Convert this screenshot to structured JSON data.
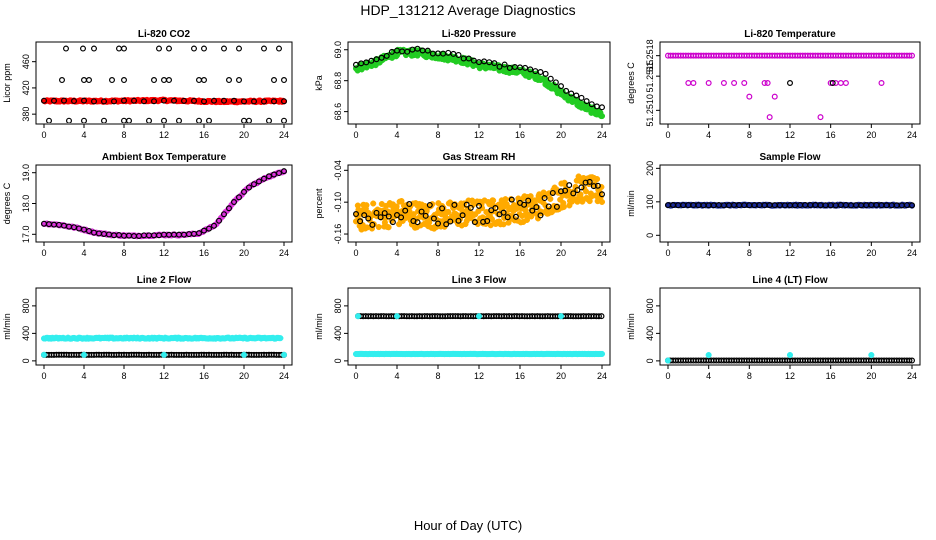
{
  "title": "HDP_131212  Average Diagnostics",
  "xlabel": "Hour of Day (UTC)",
  "chart_data": [
    {
      "type": "scatter",
      "title": "Li-820 CO2",
      "ylabel": "Licor ppm",
      "ylim": [
        365,
        490
      ],
      "yticks": [
        380,
        420,
        460
      ],
      "ytick_labels": [
        "380",
        "420",
        "460"
      ],
      "xlim": [
        0,
        24
      ],
      "xticks": [
        0,
        4,
        8,
        12,
        16,
        20,
        24
      ],
      "series": [
        {
          "color": "#ff0000",
          "filled": true,
          "x_start": 0,
          "x_end": 24,
          "step": 0.1,
          "y": [
            400,
            400,
            401,
            399,
            400
          ],
          "jitter": 1.2
        },
        {
          "color": "#000000",
          "filled": false,
          "x_start": 0,
          "x_end": 24,
          "step": 1,
          "y": [
            400
          ],
          "jitter": 0.8
        },
        {
          "color": "#000000",
          "filled": false,
          "points": [
            [
              2.2,
              480
            ],
            [
              3.9,
              480
            ],
            [
              5,
              480
            ],
            [
              7.5,
              480
            ],
            [
              8,
              480
            ],
            [
              11.5,
              480
            ],
            [
              12.5,
              480
            ],
            [
              15,
              480
            ],
            [
              16,
              480
            ],
            [
              18,
              480
            ],
            [
              19.5,
              480
            ],
            [
              22,
              480
            ],
            [
              23.5,
              480
            ],
            [
              1.8,
              432
            ],
            [
              4,
              432
            ],
            [
              4.5,
              432
            ],
            [
              6.8,
              432
            ],
            [
              8,
              432
            ],
            [
              11,
              432
            ],
            [
              12,
              432
            ],
            [
              12.5,
              432
            ],
            [
              15.5,
              432
            ],
            [
              16,
              432
            ],
            [
              18.5,
              432
            ],
            [
              19.5,
              432
            ],
            [
              23,
              432
            ],
            [
              24,
              432
            ],
            [
              0.5,
              370
            ],
            [
              2.5,
              370
            ],
            [
              4,
              370
            ],
            [
              6,
              370
            ],
            [
              8,
              370
            ],
            [
              8.5,
              370
            ],
            [
              10.5,
              370
            ],
            [
              12,
              370
            ],
            [
              13.5,
              370
            ],
            [
              15.5,
              370
            ],
            [
              16.5,
              370
            ],
            [
              20,
              370
            ],
            [
              20.5,
              370
            ],
            [
              22.5,
              370
            ],
            [
              24,
              370
            ]
          ]
        }
      ]
    },
    {
      "type": "scatter",
      "title": "Li-820 Pressure",
      "ylabel": "kPa",
      "ylim": [
        68.52,
        69.05
      ],
      "yticks": [
        68.6,
        68.8,
        69.0
      ],
      "ytick_labels": [
        "68.6",
        "68.8",
        "69.0"
      ],
      "xlim": [
        0,
        24
      ],
      "xticks": [
        0,
        4,
        8,
        12,
        16,
        20,
        24
      ],
      "series": [
        {
          "color": "#22cc22",
          "filled": true,
          "x_start": 0,
          "x_end": 24,
          "step": 0.08,
          "y": [
            68.88,
            68.92,
            68.98,
            68.98,
            68.96,
            68.94,
            68.9,
            68.88,
            68.86,
            68.82,
            68.72,
            68.64,
            68.58
          ],
          "jitter": 0.02
        },
        {
          "color": "#000000",
          "filled": false,
          "x_start": 0,
          "x_end": 24,
          "step": 0.5,
          "y": [
            68.9,
            68.94,
            68.99,
            69.0,
            68.98,
            68.96,
            68.92,
            68.9,
            68.88,
            68.86,
            68.76,
            68.68,
            68.62
          ],
          "jitter": 0.01
        }
      ]
    },
    {
      "type": "scatter",
      "title": "Li-820 Temperature",
      "ylabel": "degrees C",
      "ylim": [
        51.2508,
        51.252
      ],
      "yticks": [
        51.251,
        51.2515,
        51.2518
      ],
      "ytick_labels": [
        "51.2510",
        "51.2515",
        "51.2518"
      ],
      "xlim": [
        0,
        24
      ],
      "xticks": [
        0,
        4,
        8,
        12,
        16,
        20,
        24
      ],
      "series": [
        {
          "color": "#cc00cc",
          "filled": false,
          "x_start": 0,
          "x_end": 24,
          "step": 0.25,
          "y": [
            51.2518
          ],
          "jitter": 0
        },
        {
          "color": "#cc00cc",
          "filled": false,
          "points": [
            [
              2,
              51.2514
            ],
            [
              2.5,
              51.2514
            ],
            [
              4,
              51.2514
            ],
            [
              5.5,
              51.2514
            ],
            [
              6.5,
              51.2514
            ],
            [
              7.5,
              51.2514
            ],
            [
              9.5,
              51.2514
            ],
            [
              9.8,
              51.2514
            ],
            [
              16,
              51.2514
            ],
            [
              16.5,
              51.2514
            ],
            [
              17,
              51.2514
            ],
            [
              17.5,
              51.2514
            ],
            [
              21,
              51.2514
            ],
            [
              8,
              51.2512
            ],
            [
              10.5,
              51.2512
            ],
            [
              10,
              51.2509
            ],
            [
              15,
              51.2509
            ]
          ]
        },
        {
          "color": "#000000",
          "filled": false,
          "points": [
            [
              12,
              51.2514
            ],
            [
              16.2,
              51.2514
            ]
          ]
        }
      ]
    },
    {
      "type": "scatter",
      "title": "Ambient Box Temperature",
      "ylabel": "degrees C",
      "ylim": [
        16.75,
        19.25
      ],
      "yticks": [
        17.0,
        18.0,
        19.0
      ],
      "ytick_labels": [
        "17.0",
        "18.0",
        "19.0"
      ],
      "xlim": [
        0,
        24
      ],
      "xticks": [
        0,
        4,
        8,
        12,
        16,
        20,
        24
      ],
      "series": [
        {
          "color": "#dd33dd",
          "filled": true,
          "x_start": 0,
          "x_end": 24,
          "step": 0.15,
          "y": [
            17.35,
            17.3,
            17.2,
            17.05,
            16.98,
            16.95,
            16.96,
            16.98,
            16.98,
            17.02,
            17.3,
            18.0,
            18.55,
            18.85,
            19.05
          ],
          "jitter": 0.02
        },
        {
          "color": "#000000",
          "filled": false,
          "x_start": 0,
          "x_end": 24,
          "step": 0.5,
          "y": [
            17.35,
            17.3,
            17.2,
            17.05,
            16.98,
            16.95,
            16.96,
            16.98,
            16.98,
            17.02,
            17.3,
            18.0,
            18.55,
            18.85,
            19.05
          ],
          "jitter": 0.01
        }
      ]
    },
    {
      "type": "scatter",
      "title": "Gas Stream RH",
      "ylabel": "percent",
      "ylim": [
        -0.175,
        -0.03
      ],
      "yticks": [
        -0.16,
        -0.1,
        -0.04
      ],
      "ytick_labels": [
        "-0.16",
        "-0.10",
        "-0.04"
      ],
      "xlim": [
        0,
        24
      ],
      "xticks": [
        0,
        4,
        8,
        12,
        16,
        20,
        24
      ],
      "series": [
        {
          "color": "#ffaa00",
          "filled": true,
          "x_start": 0,
          "x_end": 24,
          "step": 0.06,
          "y": [
            -0.13,
            -0.125,
            -0.12,
            -0.125,
            -0.125,
            -0.12,
            -0.12,
            -0.115,
            -0.11,
            -0.09,
            -0.075,
            -0.08
          ],
          "jitter": 0.025
        },
        {
          "color": "#000000",
          "filled": false,
          "x_start": 0,
          "x_end": 24,
          "step": 0.4,
          "y": [
            -0.13,
            -0.125,
            -0.12,
            -0.125,
            -0.125,
            -0.12,
            -0.12,
            -0.115,
            -0.11,
            -0.09,
            -0.075,
            -0.08
          ],
          "jitter": 0.02
        }
      ]
    },
    {
      "type": "scatter",
      "title": "Sample Flow",
      "ylabel": "ml/min",
      "ylim": [
        -20,
        210
      ],
      "yticks": [
        0,
        100,
        200
      ],
      "ytick_labels": [
        "0",
        "100",
        "200"
      ],
      "xlim": [
        0,
        24
      ],
      "xticks": [
        0,
        4,
        8,
        12,
        16,
        20,
        24
      ],
      "series": [
        {
          "color": "#1a2a99",
          "filled": true,
          "x_start": 0,
          "x_end": 24,
          "step": 0.12,
          "y": [
            90
          ],
          "jitter": 1.5
        },
        {
          "color": "#000000",
          "filled": false,
          "x_start": 0,
          "x_end": 24,
          "step": 0.5,
          "y": [
            90
          ],
          "jitter": 0.5
        }
      ]
    },
    {
      "type": "scatter",
      "title": "Line 2 Flow",
      "ylabel": "ml/min",
      "ylim": [
        -60,
        1060
      ],
      "yticks": [
        0,
        400,
        800
      ],
      "ytick_labels": [
        "0",
        "400",
        "800"
      ],
      "xlim": [
        0,
        24
      ],
      "xticks": [
        0,
        4,
        8,
        12,
        16,
        20,
        24
      ],
      "series": [
        {
          "color": "#33eeee",
          "filled": true,
          "x_start": 0,
          "x_end": 23.7,
          "step": 0.12,
          "y": [
            330
          ],
          "jitter": 8
        },
        {
          "color": "#000000",
          "filled": false,
          "x_start": 0,
          "x_end": 24,
          "step": 0.25,
          "y": [
            88
          ],
          "jitter": 1
        },
        {
          "color": "#33eeee",
          "filled": true,
          "points": [
            [
              0,
              88
            ],
            [
              4,
              88
            ],
            [
              12,
              88
            ],
            [
              20,
              88
            ],
            [
              24,
              88
            ]
          ]
        }
      ]
    },
    {
      "type": "scatter",
      "title": "Line 3 Flow",
      "ylabel": "ml/min",
      "ylim": [
        -60,
        1060
      ],
      "yticks": [
        0,
        400,
        800
      ],
      "ytick_labels": [
        "0",
        "400",
        "800"
      ],
      "xlim": [
        0,
        24
      ],
      "xticks": [
        0,
        4,
        8,
        12,
        16,
        20,
        24
      ],
      "series": [
        {
          "color": "#000000",
          "filled": false,
          "x_start": 0.2,
          "x_end": 24,
          "step": 0.25,
          "y": [
            650
          ],
          "jitter": 1.5
        },
        {
          "color": "#33eeee",
          "filled": true,
          "x_start": 0,
          "x_end": 24,
          "step": 0.12,
          "y": [
            100
          ],
          "jitter": 2
        },
        {
          "color": "#33eeee",
          "filled": true,
          "points": [
            [
              0.2,
              650
            ],
            [
              4,
              650
            ],
            [
              12,
              650
            ],
            [
              20,
              650
            ]
          ]
        }
      ]
    },
    {
      "type": "scatter",
      "title": "Line 4 (LT) Flow",
      "ylabel": "ml/min",
      "ylim": [
        -60,
        1060
      ],
      "yticks": [
        0,
        400,
        800
      ],
      "ytick_labels": [
        "0",
        "400",
        "800"
      ],
      "xlim": [
        0,
        24
      ],
      "xticks": [
        0,
        4,
        8,
        12,
        16,
        20,
        24
      ],
      "series": [
        {
          "color": "#000000",
          "filled": false,
          "x_start": 0,
          "x_end": 24,
          "step": 0.25,
          "y": [
            5
          ],
          "jitter": 0.3
        },
        {
          "color": "#33eeee",
          "filled": true,
          "points": [
            [
              0,
              5
            ],
            [
              4,
              85
            ],
            [
              12,
              85
            ],
            [
              20,
              85
            ]
          ]
        }
      ]
    }
  ]
}
